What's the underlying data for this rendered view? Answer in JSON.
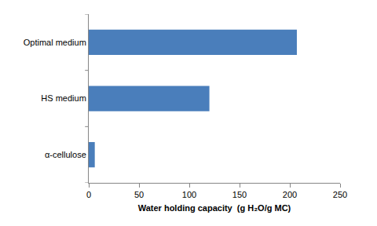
{
  "chart_data": {
    "type": "bar",
    "orientation": "horizontal",
    "xlabel": "Water holding capacity  (g H₂O/g MC)",
    "categories": [
      "α-cellulose",
      "HS medium",
      "Optimal medium"
    ],
    "values": [
      6,
      120,
      207
    ],
    "color": "#4a7ebb",
    "xlim": [
      0,
      250
    ],
    "xticks": [
      0,
      50,
      100,
      150,
      200,
      250
    ],
    "grid": false
  }
}
